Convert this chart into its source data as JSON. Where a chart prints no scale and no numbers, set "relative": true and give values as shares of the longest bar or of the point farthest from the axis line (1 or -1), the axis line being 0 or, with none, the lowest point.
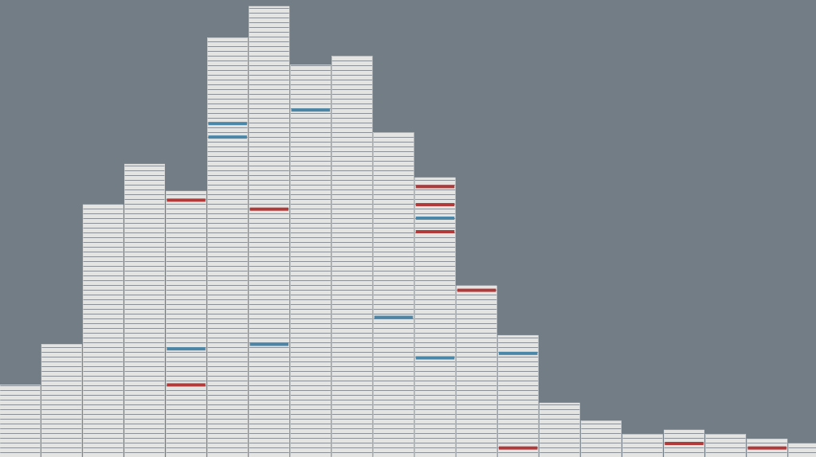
{
  "chart_data": {
    "type": "bar",
    "relative": true,
    "color": "#e4e4e2",
    "categories": [
      null,
      null,
      null,
      null,
      null,
      null,
      null,
      null,
      null,
      null,
      null,
      null,
      null,
      null,
      null,
      null,
      null,
      null,
      null,
      null
    ],
    "values": [
      0.16,
      0.25,
      0.56,
      0.65,
      0.59,
      0.93,
      1,
      0.87,
      0.89,
      0.72,
      0.62,
      0.38,
      0.27,
      0.12,
      0.08,
      0.05,
      0.06,
      0.05,
      0.04,
      0.03
    ]
  }
}
